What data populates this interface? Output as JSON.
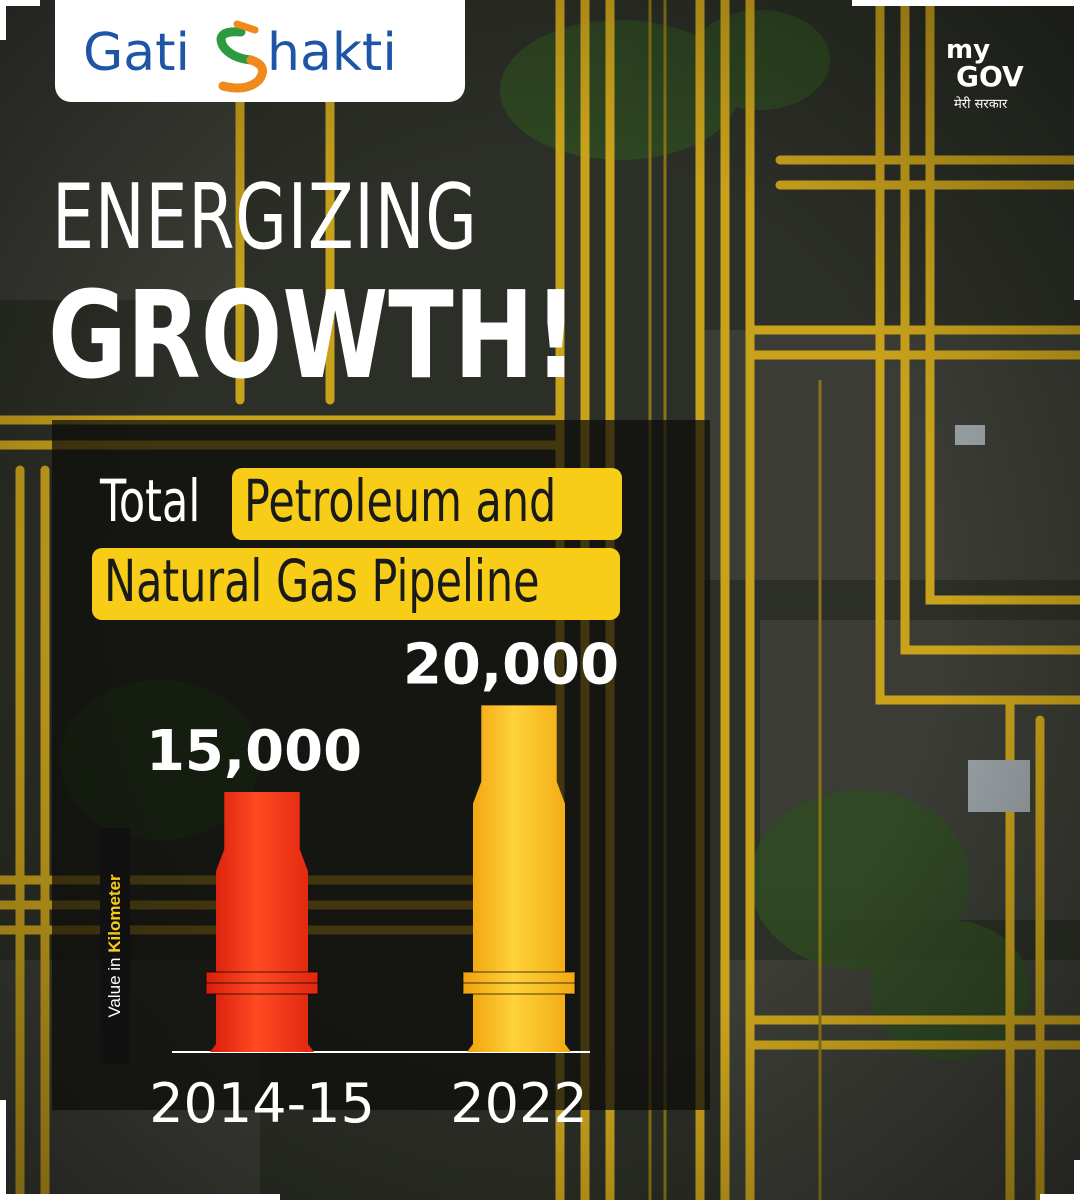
{
  "brand": {
    "logo_left": "Gati",
    "logo_right": "hakti",
    "mygov_top": "my",
    "mygov_main": "GOV",
    "mygov_tagline": "मेरी सरकार"
  },
  "headline": {
    "line1": "ENERGIZING",
    "line2": "GROWTH!"
  },
  "subtitle": {
    "plain": "Total",
    "highlight_line1": "Petroleum and",
    "highlight_line2": "Natural Gas Pipeline"
  },
  "colors": {
    "accent": "#f7cd18",
    "bar_2014": "#ff3b1c",
    "bar_2022": "#ffc21a"
  },
  "chart_data": {
    "type": "bar",
    "categories": [
      "2014-15",
      "2022"
    ],
    "values": [
      15000,
      20000
    ],
    "value_labels": [
      "15,000",
      "20,000"
    ],
    "ylabel_prefix": "Value in ",
    "ylabel_unit": "Kilometer",
    "ylim": [
      0,
      21000
    ],
    "grid": false,
    "legend": "none"
  }
}
